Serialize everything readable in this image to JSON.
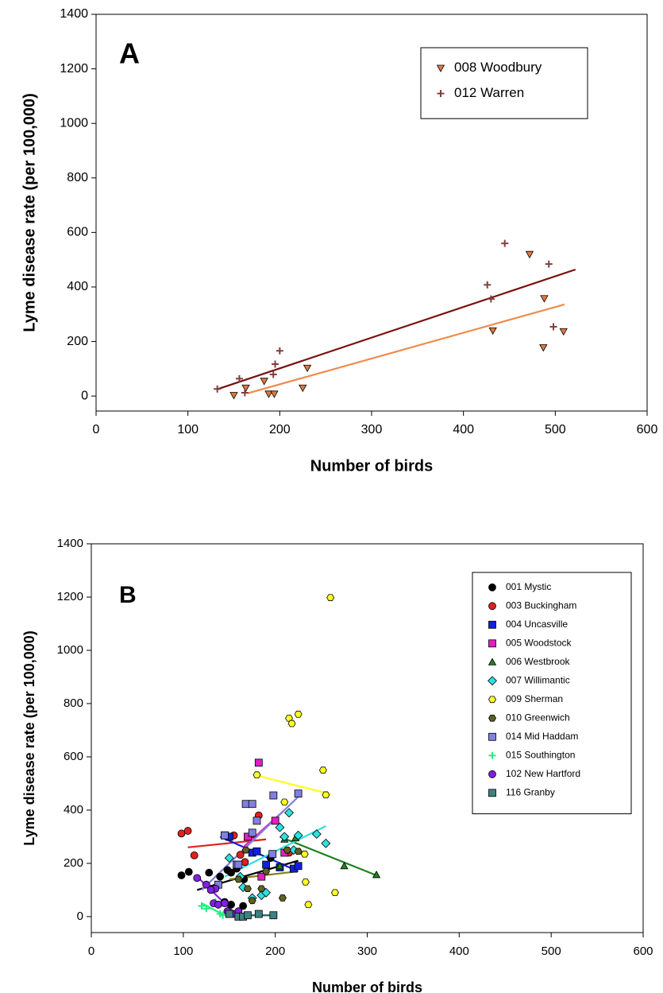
{
  "chart_data": [
    {
      "type": "scatter",
      "annotation": "A",
      "xlabel": "Number of birds",
      "ylabel": "Lyme disease rate (per 100,000)",
      "xlim": [
        0,
        600
      ],
      "xticks": [
        0,
        100,
        200,
        300,
        400,
        500,
        600
      ],
      "ylim": [
        -55,
        1400
      ],
      "yticks": [
        0,
        200,
        400,
        600,
        800,
        1000,
        1200,
        1400
      ],
      "legend": "upper right",
      "series": [
        {
          "name": "008 Woodbury",
          "color": "#e07840",
          "marker": "triangle-down",
          "x": [
            150,
            163,
            183,
            188,
            194,
            225,
            230,
            432,
            472,
            488,
            487,
            509
          ],
          "values": [
            3,
            30,
            55,
            8,
            8,
            30,
            103,
            240,
            520,
            358,
            178,
            237
          ],
          "trend": {
            "color": "#f08a4b",
            "x": [
              165,
              510
            ],
            "values": [
              10,
              336
            ]
          }
        },
        {
          "name": "012 Warren",
          "color": "#804040",
          "marker": "plus",
          "x": [
            132,
            156,
            162,
            193,
            195,
            200,
            426,
            430,
            445,
            493,
            498
          ],
          "values": [
            26,
            64,
            12,
            79,
            117,
            166,
            408,
            356,
            560,
            484,
            254
          ],
          "trend": {
            "color": "#7a1010",
            "x": [
              132,
              522
            ],
            "values": [
              25,
              464
            ]
          }
        }
      ]
    },
    {
      "type": "scatter",
      "annotation": "B",
      "xlabel": "Number of birds",
      "ylabel": "Lyme disease rate (per 100,000)",
      "xlim": [
        0,
        600
      ],
      "xticks": [
        0,
        100,
        200,
        300,
        400,
        500,
        600
      ],
      "ylim": [
        -60,
        1400
      ],
      "yticks": [
        0,
        200,
        400,
        600,
        800,
        1000,
        1200,
        1400
      ],
      "legend": "upper right",
      "series": [
        {
          "name": "001 Mystic",
          "color": "#000000",
          "marker": "circle",
          "x": [
            98,
            106,
            128,
            140,
            148,
            152,
            158,
            166,
            145,
            152,
            165,
            195
          ],
          "values": [
            155,
            168,
            165,
            150,
            175,
            165,
            180,
            140,
            55,
            45,
            40,
            220
          ],
          "trend": {
            "color": "#000000",
            "x": [
              115,
              225
            ],
            "values": [
              100,
              210
            ]
          }
        },
        {
          "name": "003 Buckingham",
          "color": "#e02020",
          "marker": "circle",
          "x": [
            98,
            105,
            155,
            162,
            167,
            175,
            182,
            112,
            215
          ],
          "values": [
            312,
            322,
            305,
            232,
            205,
            310,
            380,
            230,
            240
          ],
          "trend": {
            "color": "#e02020",
            "x": [
              105,
              190
            ],
            "values": [
              260,
              290
            ]
          }
        },
        {
          "name": "004 Uncasville",
          "color": "#1020e0",
          "marker": "square",
          "x": [
            145,
            150,
            175,
            180,
            190,
            205,
            220,
            225
          ],
          "values": [
            305,
            300,
            240,
            245,
            195,
            185,
            180,
            190
          ],
          "trend": {
            "color": "#1020e0",
            "x": [
              140,
              225
            ],
            "values": [
              300,
              170
            ]
          }
        },
        {
          "name": "005 Woodstock",
          "color": "#e020c0",
          "marker": "square",
          "x": [
            182,
            200,
            185,
            210,
            170
          ],
          "values": [
            578,
            360,
            150,
            240,
            300
          ],
          "trend": {
            "color": "#e020c0",
            "x": [
              165,
              210
            ],
            "values": [
              260,
              400
            ]
          }
        },
        {
          "name": "006 Westbrook",
          "color": "#208020",
          "marker": "triangle",
          "x": [
            205,
            210,
            222,
            275,
            310
          ],
          "values": [
            190,
            290,
            295,
            190,
            157
          ],
          "trend": {
            "color": "#208020",
            "x": [
              205,
              310
            ],
            "values": [
              300,
              155
            ]
          }
        },
        {
          "name": "007 Willimantic",
          "color": "#30e0e0",
          "marker": "diamond",
          "x": [
            150,
            165,
            175,
            185,
            190,
            205,
            210,
            215,
            220,
            225,
            245,
            255,
            162
          ],
          "values": [
            220,
            110,
            70,
            80,
            90,
            335,
            300,
            390,
            250,
            305,
            310,
            275,
            150
          ],
          "trend": {
            "color": "#30e0e0",
            "x": [
              145,
              255
            ],
            "values": [
              150,
              340
            ]
          }
        },
        {
          "name": "009 Sherman",
          "color": "#ffff20",
          "marker": "hexagon",
          "x": [
            180,
            215,
            218,
            225,
            210,
            252,
            255,
            232,
            236,
            260,
            233,
            265
          ],
          "values": [
            532,
            745,
            725,
            760,
            430,
            550,
            457,
            235,
            45,
            1198,
            130,
            90
          ],
          "trend": {
            "color": "#ffff20",
            "x": [
              180,
              260
            ],
            "values": [
              530,
              460
            ]
          }
        },
        {
          "name": "010 Greenwich",
          "color": "#606020",
          "marker": "hexagon",
          "x": [
            168,
            185,
            170,
            175,
            190,
            208,
            213,
            225,
            160
          ],
          "values": [
            250,
            105,
            105,
            60,
            170,
            70,
            250,
            245,
            140
          ],
          "trend": {
            "color": "#808020",
            "x": [
              150,
              225
            ],
            "values": [
              140,
              170
            ]
          }
        },
        {
          "name": "014 Mid Haddam",
          "color": "#8080e0",
          "marker": "square",
          "x": [
            158,
            168,
            175,
            198,
            225,
            180,
            175,
            145,
            138,
            160,
            197
          ],
          "values": [
            195,
            423,
            423,
            455,
            462,
            360,
            315,
            305,
            120,
            195,
            235
          ],
          "trend": {
            "color": "#8080e0",
            "x": [
              120,
              225
            ],
            "values": [
              100,
              450
            ]
          }
        },
        {
          "name": "015 Southington",
          "color": "#20f080",
          "marker": "plus",
          "x": [
            120,
            125,
            140,
            143,
            135
          ],
          "values": [
            40,
            30,
            10,
            5,
            55
          ],
          "trend": {
            "color": "#20f080",
            "x": [
              120,
              145
            ],
            "values": [
              50,
              5
            ]
          }
        },
        {
          "name": "102 New Hartford",
          "color": "#8020e0",
          "marker": "circle",
          "x": [
            115,
            125,
            133,
            138,
            145,
            148,
            155,
            160,
            135,
            130
          ],
          "values": [
            145,
            120,
            50,
            45,
            50,
            20,
            10,
            20,
            105,
            100
          ],
          "trend": {
            "color": "#8020e0",
            "x": [
              118,
              160
            ],
            "values": [
              140,
              0
            ]
          }
        },
        {
          "name": "116 Granby",
          "color": "#408080",
          "marker": "square",
          "x": [
            150,
            160,
            165,
            170,
            182,
            198
          ],
          "values": [
            10,
            0,
            0,
            5,
            10,
            5
          ],
          "trend": {
            "color": "#206060",
            "x": [
              150,
              200
            ],
            "values": [
              5,
              5
            ]
          }
        }
      ]
    }
  ]
}
